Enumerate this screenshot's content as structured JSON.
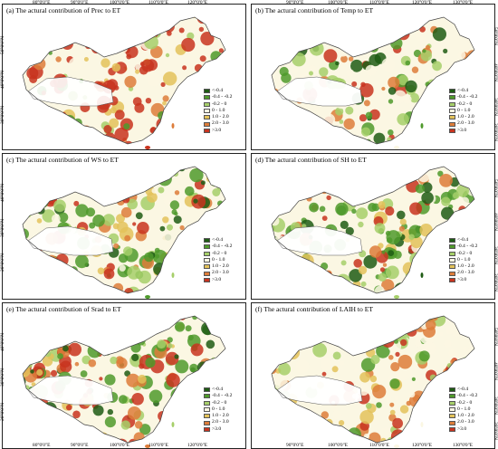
{
  "figure": {
    "top_ticks": [
      "80°0'0\"E",
      "90°0'0\"E",
      "100°0'0\"E",
      "110°0'0\"E",
      "120°0'0\"E",
      "130°0'0\"E"
    ],
    "bottom_ticks": [
      "80°0'0\"E",
      "90°0'0\"E",
      "100°0'0\"E",
      "110°0'0\"E",
      "120°0'0\"E",
      "130°0'0\"E"
    ],
    "lat_ticks": [
      "50°0'0\"N",
      "40°0'0\"N",
      "30°0'0\"N",
      "20°0'0\"N"
    ]
  },
  "legend": [
    {
      "label": "<-0.4",
      "color": "#1f5c14"
    },
    {
      "label": "-0.4 - -0.2",
      "color": "#4f9a2c"
    },
    {
      "label": "-0.2 - 0",
      "color": "#a6cf6a"
    },
    {
      "label": "0 - 1.0",
      "color": "#fbf7e3"
    },
    {
      "label": "1.0 - 2.0",
      "color": "#e3c25a"
    },
    {
      "label": "2.0 - 3.0",
      "color": "#dd7d3a"
    },
    {
      "label": ">3.0",
      "color": "#c8341f"
    }
  ],
  "panels": [
    {
      "title": "(a) The actural contribution of Prec to ET",
      "scheme": "a"
    },
    {
      "title": "(b) The actural contribution of Temp to ET",
      "scheme": "b"
    },
    {
      "title": "(c) The actural contribution of WS to ET",
      "scheme": "c"
    },
    {
      "title": "(d) The actural contribution of SH to ET",
      "scheme": "d"
    },
    {
      "title": "(e) The actural contribution of Srad to ET",
      "scheme": "e"
    },
    {
      "title": "(f) The actural contribution of LAIH to ET",
      "scheme": "f"
    }
  ]
}
